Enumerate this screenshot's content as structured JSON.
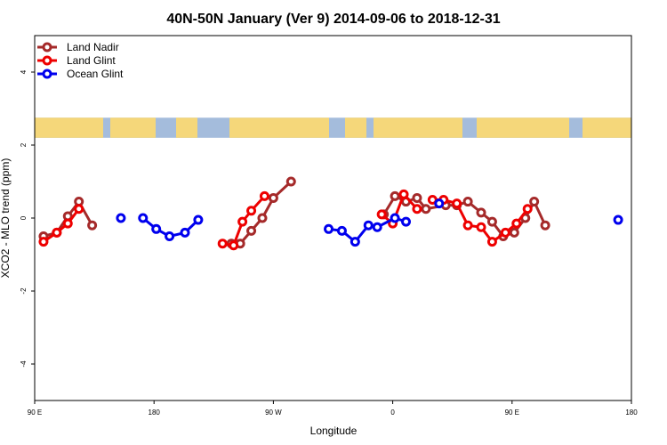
{
  "chart_data": {
    "type": "line",
    "title": "40N-50N January (Ver 9)   2014-09-06 to 2018-12-31",
    "xlabel": "Longitude",
    "ylabel": "XCO2 - MLO trend (ppm)",
    "xlim": [
      -90,
      180
    ],
    "ylim": [
      -5,
      5
    ],
    "x_ticks": [
      {
        "value": -90,
        "label": "90 E"
      },
      {
        "value": -36,
        "label": "180"
      },
      {
        "value": 18,
        "label": "90 W"
      },
      {
        "value": 72,
        "label": "0"
      },
      {
        "value": 126,
        "label": "90 E"
      },
      {
        "value": 180,
        "label": "180"
      }
    ],
    "y_ticks": [
      {
        "value": -4,
        "label": "-4"
      },
      {
        "value": -2,
        "label": "-2"
      },
      {
        "value": 0,
        "label": "0"
      },
      {
        "value": 2,
        "label": "2"
      },
      {
        "value": 4,
        "label": "4"
      }
    ],
    "map_strip": {
      "y_range": [
        2.2,
        2.75
      ]
    },
    "series": [
      {
        "name": "Land Nadir",
        "color": "#a52a2a",
        "segments": [
          [
            [
              -86,
              -0.5
            ],
            [
              -80,
              -0.4
            ],
            [
              -75,
              0.05
            ],
            [
              -70,
              0.45
            ],
            [
              -64,
              -0.2
            ]
          ],
          [
            [
              -1,
              -0.7
            ],
            [
              3,
              -0.7
            ],
            [
              8,
              -0.35
            ],
            [
              13,
              0.0
            ],
            [
              18,
              0.55
            ],
            [
              26,
              1.0
            ]
          ],
          [
            [
              68,
              0.1
            ],
            [
              73,
              0.6
            ],
            [
              78,
              0.45
            ],
            [
              83,
              0.55
            ],
            [
              87,
              0.25
            ],
            [
              96,
              0.35
            ],
            [
              101,
              0.35
            ],
            [
              106,
              0.45
            ],
            [
              112,
              0.15
            ],
            [
              117,
              -0.1
            ],
            [
              122,
              -0.5
            ],
            [
              127,
              -0.4
            ],
            [
              132,
              0.0
            ],
            [
              136,
              0.45
            ],
            [
              141,
              -0.2
            ]
          ]
        ]
      },
      {
        "name": "Land Glint",
        "color": "#ee0000",
        "segments": [
          [
            [
              -86,
              -0.65
            ],
            [
              -80,
              -0.4
            ],
            [
              -75,
              -0.15
            ],
            [
              -70,
              0.25
            ]
          ],
          [
            [
              -5,
              -0.7
            ],
            [
              0,
              -0.75
            ],
            [
              4,
              -0.1
            ],
            [
              8,
              0.2
            ],
            [
              14,
              0.6
            ]
          ],
          [
            [
              67,
              0.1
            ],
            [
              72,
              -0.15
            ],
            [
              77,
              0.65
            ],
            [
              83,
              0.25
            ]
          ],
          [
            [
              90,
              0.5
            ],
            [
              95,
              0.5
            ],
            [
              101,
              0.4
            ],
            [
              106,
              -0.2
            ],
            [
              112,
              -0.25
            ],
            [
              117,
              -0.65
            ],
            [
              123,
              -0.4
            ],
            [
              128,
              -0.15
            ],
            [
              133,
              0.25
            ]
          ]
        ]
      },
      {
        "name": "Ocean Glint",
        "color": "#0000ee",
        "segments": [
          [
            [
              -51,
              0.0
            ]
          ],
          [
            [
              -41,
              0.0
            ],
            [
              -35,
              -0.3
            ],
            [
              -29,
              -0.5
            ],
            [
              -22,
              -0.4
            ],
            [
              -16,
              -0.05
            ]
          ],
          [
            [
              43,
              -0.3
            ],
            [
              49,
              -0.35
            ],
            [
              55,
              -0.65
            ],
            [
              61,
              -0.2
            ],
            [
              65,
              -0.25
            ],
            [
              73,
              0.0
            ],
            [
              78,
              -0.1
            ]
          ],
          [
            [
              93,
              0.4
            ]
          ],
          [
            [
              174,
              -0.05
            ]
          ]
        ]
      }
    ],
    "legend_position": "top-left",
    "grid": false
  }
}
